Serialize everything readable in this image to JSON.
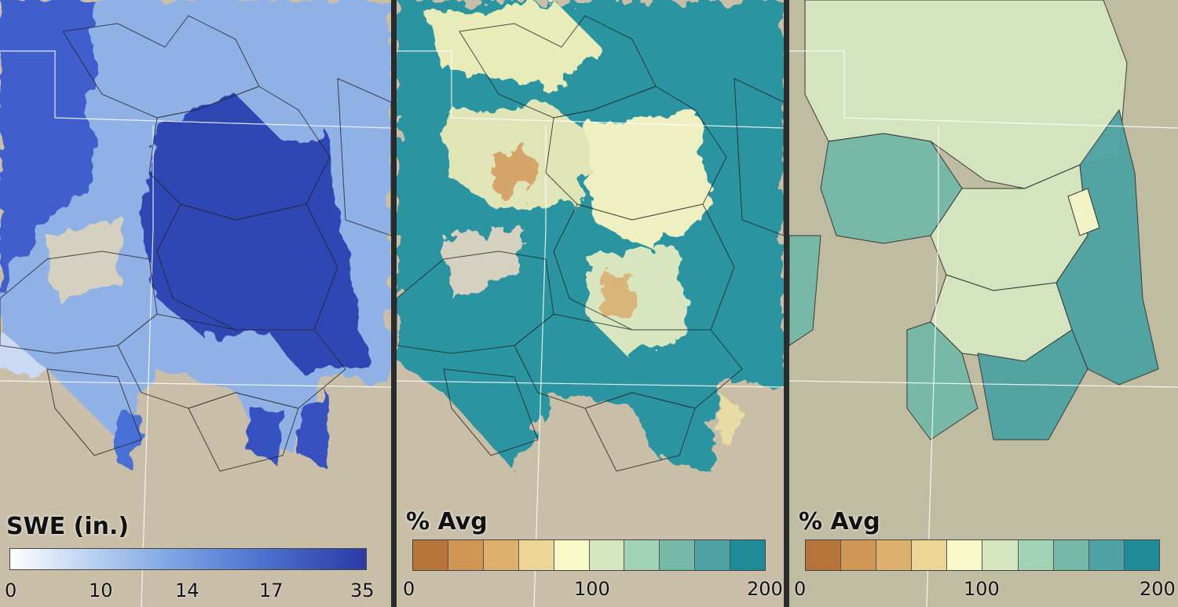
{
  "panels": [
    {
      "legend_title": "SWE (in.)",
      "legend_type": "gradient",
      "colors": [
        "#ffffff",
        "#c8daf3",
        "#7ea6e3",
        "#4d73cf",
        "#2c3aa6"
      ],
      "ticks": [
        "0",
        "10",
        "14",
        "17",
        "35"
      ]
    },
    {
      "legend_title": "% Avg",
      "legend_type": "classes",
      "colors": [
        "#b7743a",
        "#cf9654",
        "#dcb16f",
        "#ecd597",
        "#f9f9c7",
        "#d6e7c0",
        "#a2d2b6",
        "#74b8a8",
        "#4ea2a3",
        "#1f8b98"
      ],
      "ticks": [
        "0",
        "100",
        "200"
      ]
    },
    {
      "legend_title": "% Avg",
      "legend_type": "classes",
      "colors": [
        "#b7743a",
        "#cf9654",
        "#dcb16f",
        "#ecd597",
        "#f9f9c7",
        "#d6e7c0",
        "#a2d2b6",
        "#74b8a8",
        "#4ea2a3",
        "#1f8b98"
      ],
      "ticks": [
        "0",
        "100",
        "200"
      ]
    }
  ]
}
